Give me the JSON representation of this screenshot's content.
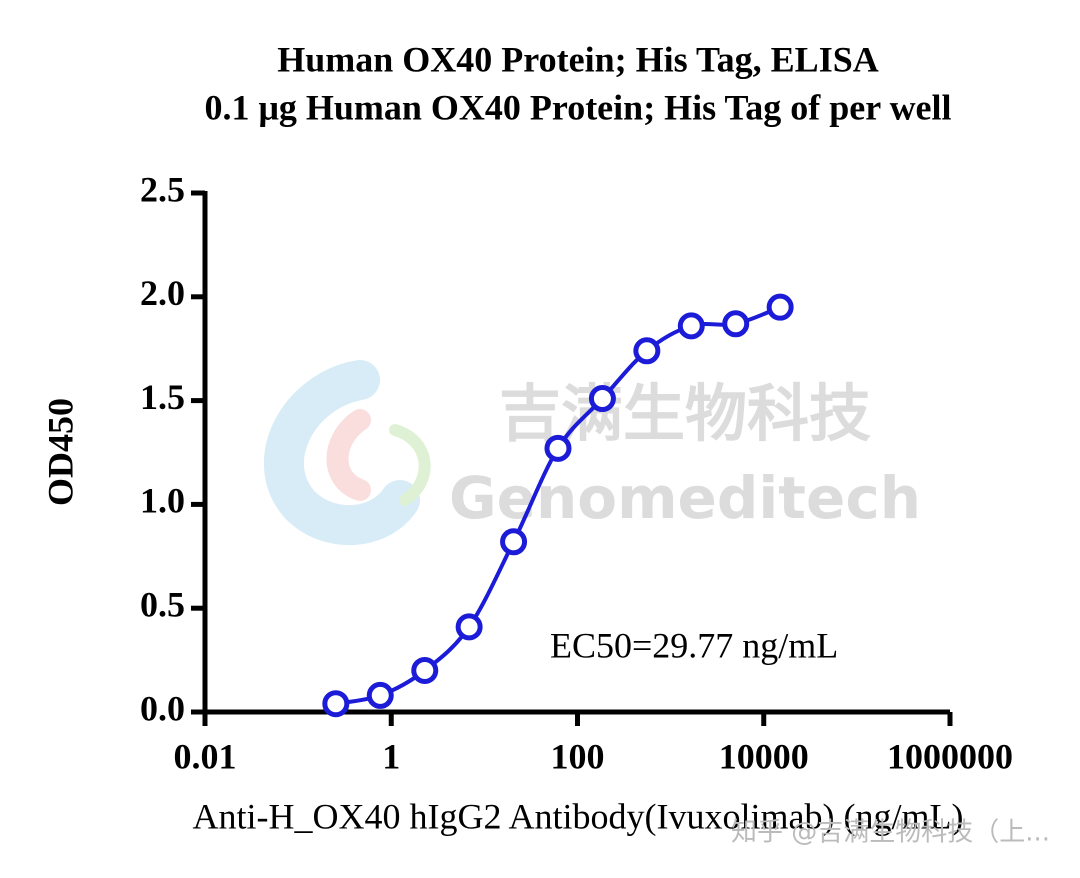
{
  "chart_data": {
    "type": "line",
    "title": [
      "Human OX40 Protein; His Tag,  ELISA",
      "0.1 μg Human OX40 Protein; His Tag of per well"
    ],
    "xlabel": "Anti-H_OX40 hIgG2 Antibody(Ivuxolimab) (ng/mL)",
    "ylabel": "OD450",
    "annotation": "EC50=29.77 ng/mL",
    "xscale": "log",
    "x": [
      0.254,
      0.762,
      2.29,
      6.86,
      20.58,
      61.73,
      185.19,
      555.56,
      1666.67,
      5000,
      15000
    ],
    "series": [
      {
        "name": "OD450",
        "color": "#1c1cd8",
        "values": [
          0.04,
          0.08,
          0.2,
          0.41,
          0.82,
          1.27,
          1.51,
          1.74,
          1.86,
          1.87,
          1.95
        ]
      }
    ],
    "xlim": [
      0.01,
      1000000
    ],
    "xticks": [
      0.01,
      1,
      100,
      10000,
      1000000
    ],
    "ylim": [
      0,
      2.5
    ],
    "yticks": [
      {
        "value": 0,
        "label": "0.0"
      },
      0.5,
      {
        "value": 1,
        "label": "1.0"
      },
      1.5,
      {
        "value": 2,
        "label": "2.0"
      },
      2.5
    ]
  },
  "watermarks": [
    "吉满生物科技",
    "Genomeditech",
    "知乎 @吉满生物科技（上..."
  ]
}
